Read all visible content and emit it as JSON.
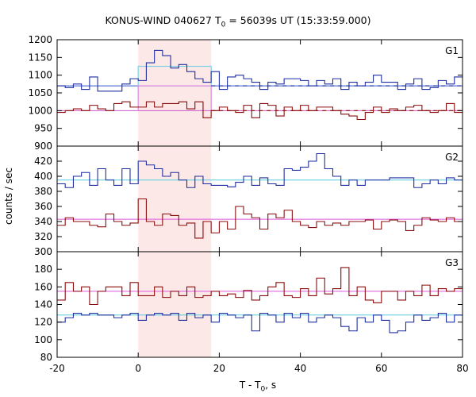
{
  "chart": {
    "title_main": "KONUS-WIND 040627 T",
    "title_sub": "0",
    "title_rest": " = 56039s UT (15:33:59.000)",
    "ylabel": "counts / sec",
    "xlabel_main": "T - T",
    "xlabel_sub": "0",
    "xlabel_rest": ", s"
  },
  "chart_data": {
    "type": "line",
    "title": "KONUS-WIND 040627 T0 = 56039s UT (15:33:59.000)",
    "xlabel": "T - T0, s",
    "ylabel": "counts / sec",
    "xlim": [
      -20,
      80
    ],
    "x_ticks": [
      -20,
      0,
      20,
      40,
      60,
      80
    ],
    "highlight_interval": [
      0,
      18
    ],
    "highlight_color": "#fde8e8",
    "bin_edges": [
      -20,
      -18,
      -16,
      -14,
      -12,
      -10,
      -8,
      -6,
      -4,
      -2,
      0,
      2,
      4,
      6,
      8,
      10,
      12,
      14,
      16,
      18,
      20,
      22,
      24,
      26,
      28,
      30,
      32,
      34,
      36,
      38,
      40,
      42,
      44,
      46,
      48,
      50,
      52,
      54,
      56,
      58,
      60,
      62,
      64,
      66,
      68,
      70,
      72,
      74,
      76,
      78,
      80
    ],
    "panels": [
      {
        "name": "G1",
        "ylim": [
          900,
          1200
        ],
        "y_ticks": [
          900,
          950,
          1000,
          1050,
          1100,
          1150,
          1200
        ],
        "series": [
          {
            "color": "#1f2fa0",
            "values": [
              1070,
              1065,
              1075,
              1060,
              1095,
              1055,
              1055,
              1055,
              1075,
              1090,
              1085,
              1135,
              1170,
              1155,
              1120,
              1130,
              1110,
              1090,
              1080,
              1110,
              1060,
              1095,
              1100,
              1090,
              1080,
              1060,
              1080,
              1075,
              1090,
              1090,
              1085,
              1070,
              1085,
              1075,
              1090,
              1060,
              1080,
              1070,
              1080,
              1100,
              1080,
              1080,
              1060,
              1075,
              1090,
              1060,
              1065,
              1085,
              1075,
              1095
            ],
            "bg_level": 1070,
            "bg_color": "#3355cc"
          },
          {
            "color": "#8a0d0d",
            "values": [
              995,
              1000,
              1005,
              1000,
              1015,
              1005,
              1000,
              1020,
              1025,
              1010,
              1010,
              1025,
              1010,
              1020,
              1020,
              1025,
              1005,
              1025,
              980,
              1000,
              1010,
              1000,
              995,
              1015,
              980,
              1020,
              1015,
              985,
              1010,
              1000,
              1015,
              1000,
              1010,
              1010,
              1000,
              990,
              985,
              975,
              995,
              1010,
              995,
              1005,
              1000,
              1010,
              1015,
              1000,
              995,
              1000,
              1020,
              995
            ],
            "bg_level": 1000,
            "bg_color": "#cc55cc"
          }
        ],
        "mean_blue": {
          "x": [
            0,
            18
          ],
          "level": 1125,
          "color": "#7fd0e0"
        },
        "mean_red": {
          "x": [
            0,
            18
          ],
          "level": 1070,
          "color": "#dd88dd"
        }
      },
      {
        "name": "G2",
        "ylim": [
          300,
          440
        ],
        "y_ticks": [
          300,
          320,
          340,
          360,
          380,
          400,
          420
        ],
        "series": [
          {
            "color": "#1f2fa0",
            "values": [
              390,
              385,
              400,
              405,
              388,
              410,
              395,
              388,
              410,
              390,
              420,
              415,
              410,
              400,
              405,
              395,
              385,
              400,
              390,
              388,
              388,
              386,
              392,
              400,
              388,
              398,
              390,
              388,
              410,
              408,
              412,
              420,
              430,
              410,
              400,
              388,
              395,
              388,
              395,
              395,
              395,
              398,
              398,
              398,
              385,
              390,
              395,
              390,
              398,
              395
            ],
            "bg_level": 395,
            "bg_color": "#55ccdd"
          },
          {
            "color": "#8a0d0d",
            "values": [
              335,
              345,
              340,
              340,
              335,
              333,
              350,
              340,
              335,
              338,
              370,
              340,
              335,
              350,
              348,
              335,
              338,
              318,
              340,
              325,
              340,
              330,
              360,
              350,
              345,
              330,
              350,
              345,
              355,
              340,
              335,
              332,
              340,
              335,
              338,
              335,
              340,
              340,
              342,
              330,
              340,
              342,
              340,
              328,
              335,
              345,
              342,
              340,
              345,
              340
            ],
            "bg_level": 343,
            "bg_color": "#dd55dd"
          }
        ]
      },
      {
        "name": "G3",
        "ylim": [
          80,
          200
        ],
        "y_ticks": [
          80,
          100,
          120,
          140,
          160,
          180
        ],
        "series": [
          {
            "color": "#8a0d0d",
            "values": [
              145,
              165,
              155,
              160,
              140,
              155,
              160,
              160,
              150,
              165,
              150,
              150,
              160,
              148,
              155,
              150,
              160,
              148,
              150,
              155,
              150,
              152,
              148,
              156,
              145,
              150,
              160,
              165,
              150,
              148,
              158,
              150,
              170,
              152,
              158,
              182,
              150,
              160,
              145,
              142,
              155,
              155,
              145,
              155,
              150,
              162,
              150,
              158,
              155,
              158
            ],
            "bg_level": 155,
            "bg_color": "#dd55dd"
          },
          {
            "color": "#1f2fa0",
            "values": [
              120,
              125,
              130,
              128,
              130,
              128,
              128,
              125,
              128,
              130,
              122,
              128,
              130,
              128,
              130,
              122,
              130,
              125,
              128,
              120,
              130,
              128,
              125,
              128,
              110,
              130,
              128,
              120,
              130,
              125,
              130,
              120,
              125,
              128,
              125,
              115,
              110,
              125,
              120,
              128,
              122,
              108,
              110,
              120,
              128,
              122,
              125,
              130,
              120,
              128
            ],
            "bg_level": 128,
            "bg_color": "#55ccdd"
          }
        ]
      }
    ]
  }
}
